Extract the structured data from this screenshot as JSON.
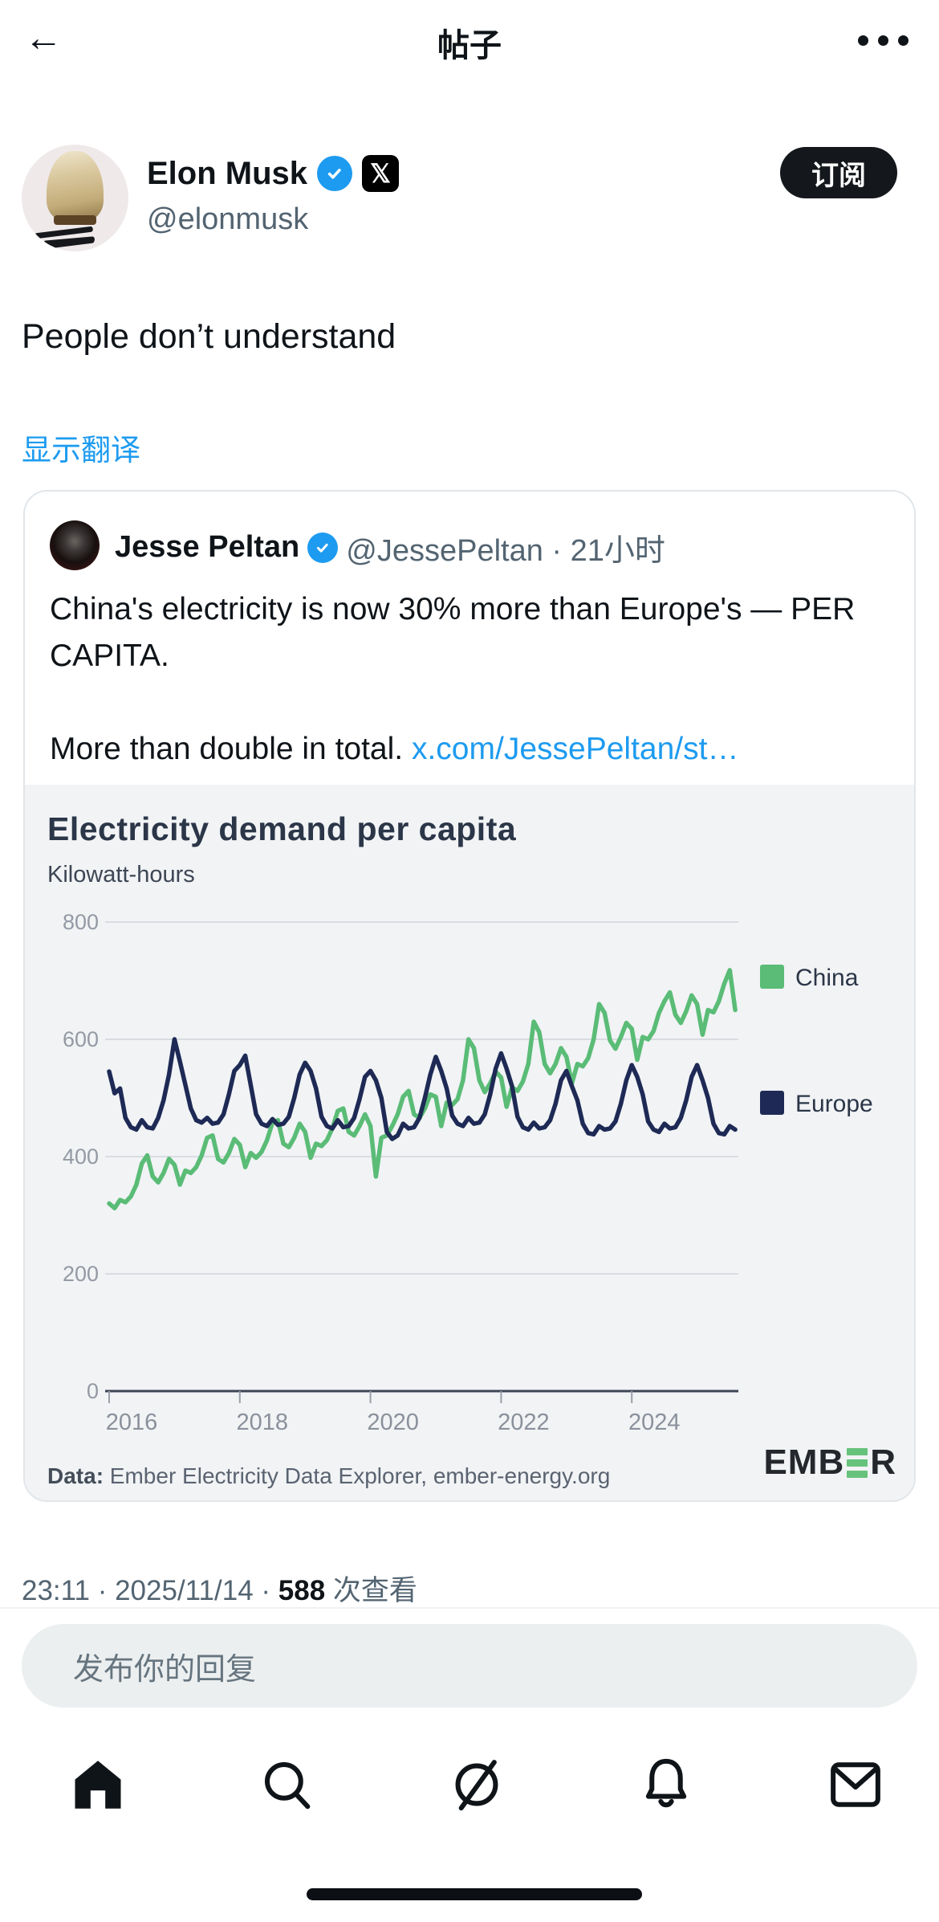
{
  "topbar": {
    "title": "帖子"
  },
  "post": {
    "author": {
      "name": "Elon Musk",
      "handle": "@elonmusk"
    },
    "subscribe_label": "订阅",
    "body": "People don’t understand",
    "show_translation": "显示翻译",
    "time_date": "23:11 · 2025/11/14 · ",
    "views_count": "588",
    "views_label": " 次查看"
  },
  "quote": {
    "author_name": "Jesse Peltan",
    "author_handle_time": "@JessePeltan · 21小时",
    "text_line1": "China's electricity is now 30% more than Europe's — PER CAPITA.",
    "text_line2": "More than double in total. ",
    "link_text": "x.com/JessePeltan/st…"
  },
  "chart_data": {
    "type": "line",
    "title": "Electricity demand per capita",
    "subtitle": "Kilowatt-hours",
    "x_start_year": 2016,
    "x_ticks": [
      2016,
      2018,
      2020,
      2022,
      2024
    ],
    "ylim": [
      0,
      800
    ],
    "yticks": [
      0,
      200,
      400,
      600,
      800
    ],
    "grid": true,
    "legend_position": "right",
    "series": [
      {
        "name": "China",
        "color": "#5abc76",
        "values": [
          320,
          312,
          326,
          322,
          332,
          352,
          388,
          402,
          366,
          356,
          372,
          396,
          386,
          352,
          376,
          372,
          382,
          402,
          432,
          436,
          396,
          390,
          406,
          430,
          420,
          382,
          406,
          398,
          408,
          428,
          458,
          462,
          422,
          416,
          432,
          456,
          442,
          398,
          422,
          418,
          428,
          448,
          478,
          482,
          442,
          436,
          452,
          472,
          452,
          366,
          432,
          436,
          452,
          472,
          502,
          512,
          472,
          466,
          482,
          506,
          502,
          452,
          492,
          488,
          498,
          530,
          600,
          585,
          530,
          510,
          525,
          545,
          535,
          485,
          518,
          512,
          528,
          558,
          630,
          612,
          558,
          542,
          558,
          585,
          570,
          525,
          558,
          554,
          568,
          600,
          660,
          645,
          598,
          584,
          604,
          628,
          618,
          565,
          604,
          600,
          614,
          645,
          665,
          680,
          642,
          628,
          648,
          675,
          660,
          608,
          650,
          646,
          665,
          695,
          718,
          650
        ]
      },
      {
        "name": "Europe",
        "color": "#1e2a55",
        "values": [
          545,
          508,
          516,
          466,
          450,
          446,
          462,
          450,
          448,
          466,
          496,
          540,
          600,
          562,
          522,
          482,
          462,
          458,
          466,
          456,
          458,
          472,
          506,
          546,
          556,
          572,
          522,
          472,
          456,
          452,
          464,
          454,
          456,
          468,
          500,
          540,
          560,
          546,
          516,
          468,
          452,
          448,
          462,
          450,
          452,
          466,
          498,
          536,
          546,
          530,
          500,
          442,
          430,
          436,
          456,
          448,
          450,
          466,
          500,
          540,
          570,
          546,
          516,
          470,
          456,
          452,
          466,
          456,
          458,
          472,
          506,
          550,
          576,
          550,
          520,
          468,
          450,
          446,
          458,
          448,
          450,
          462,
          490,
          530,
          546,
          520,
          496,
          456,
          440,
          438,
          452,
          446,
          448,
          460,
          490,
          530,
          556,
          536,
          506,
          460,
          446,
          442,
          456,
          448,
          450,
          466,
          496,
          536,
          556,
          530,
          500,
          456,
          440,
          438,
          452,
          446
        ]
      }
    ],
    "source_prefix": "Data:",
    "source_text": " Ember Electricity Data Explorer, ember-energy.org",
    "logo_part1": "EMB",
    "logo_part2": "R"
  },
  "reply": {
    "placeholder": "发布你的回复"
  },
  "nav": {
    "items": [
      "home",
      "search",
      "grok",
      "notifications",
      "messages"
    ]
  },
  "colors": {
    "accent_blue": "#1d9bf0",
    "china_green": "#5abc76",
    "europe_navy": "#1e2a55",
    "chart_bg": "#f1f3f5",
    "button_black": "#14171b"
  }
}
